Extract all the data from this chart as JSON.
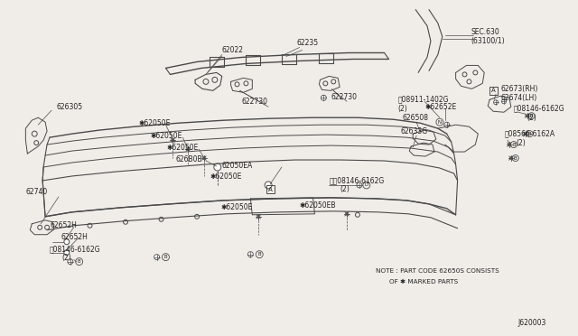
{
  "bg_color": "#f0ede8",
  "line_color": "#4a4a4a",
  "text_color": "#222222",
  "fig_width": 6.4,
  "fig_height": 3.72,
  "note_line1": "NOTE : PART CODE 62650S CONSISTS",
  "note_line2": "OF ✱ MARKED PARTS",
  "diagram_id": "J620003"
}
